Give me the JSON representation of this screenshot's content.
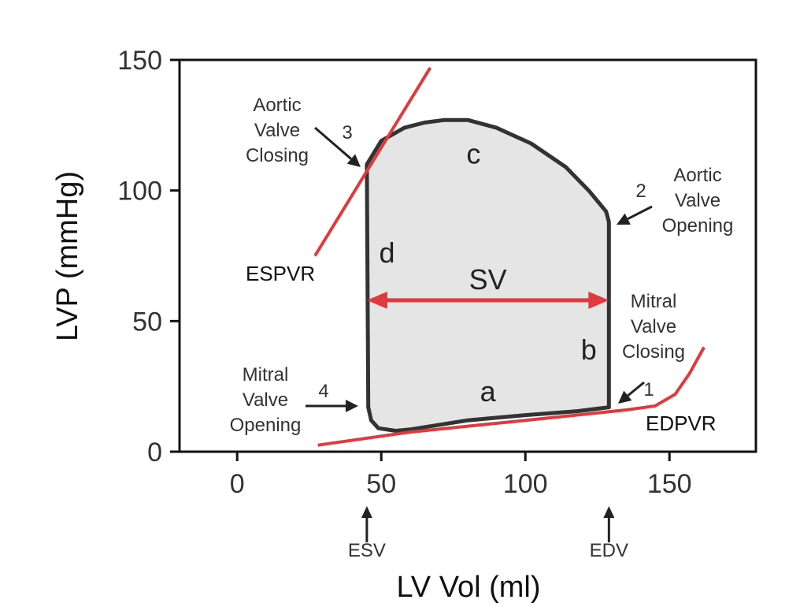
{
  "chart_data": {
    "type": "line",
    "title": "",
    "xlabel": "LV Vol (ml)",
    "ylabel": "LVP (mmHg)",
    "xlim": [
      -20,
      180
    ],
    "ylim": [
      0,
      150
    ],
    "xticks": [
      0,
      50,
      100,
      150
    ],
    "yticks": [
      0,
      50,
      100,
      150
    ],
    "grid": false,
    "colors": {
      "loop_stroke": "#333333",
      "loop_fill": "#e5e5e5",
      "line": "#e03a3e",
      "frame": "#111111"
    },
    "pv_loop": {
      "name": "",
      "points": [
        [
          45.5,
          17
        ],
        [
          45,
          110
        ],
        [
          50,
          119
        ],
        [
          58,
          124
        ],
        [
          65,
          126
        ],
        [
          72,
          127
        ],
        [
          80,
          127
        ],
        [
          90,
          124
        ],
        [
          102,
          118
        ],
        [
          114,
          109
        ],
        [
          122,
          100
        ],
        [
          128,
          92
        ],
        [
          129,
          88
        ],
        [
          129,
          17
        ],
        [
          118,
          15.5
        ],
        [
          100,
          14
        ],
        [
          80,
          12
        ],
        [
          60,
          8.5
        ],
        [
          55,
          8
        ],
        [
          49,
          9
        ],
        [
          46.5,
          12
        ]
      ]
    },
    "espvr": {
      "name": "ESPVR",
      "points": [
        [
          27,
          75
        ],
        [
          67,
          147
        ]
      ]
    },
    "edpvr": {
      "name": "EDPVR",
      "points": [
        [
          28,
          2.5
        ],
        [
          60,
          7.5
        ],
        [
          100,
          12
        ],
        [
          135,
          16
        ],
        [
          145,
          17.5
        ],
        [
          152,
          22
        ],
        [
          157,
          30
        ],
        [
          162,
          40
        ]
      ]
    },
    "sv_arrow": {
      "label": "SV",
      "x_start": 45,
      "x_end": 129,
      "y": 58
    },
    "points": [
      {
        "id": "1",
        "x": 129,
        "y": 17,
        "label": [
          "Mitral",
          "Valve",
          "Closing"
        ]
      },
      {
        "id": "2",
        "x": 129,
        "y": 88,
        "label": [
          "Aortic",
          "Valve",
          "Opening"
        ]
      },
      {
        "id": "3",
        "x": 45,
        "y": 110,
        "label": [
          "Aortic",
          "Valve",
          "Closing"
        ]
      },
      {
        "id": "4",
        "x": 45.5,
        "y": 17,
        "label": [
          "Mitral",
          "Valve",
          "Opening"
        ]
      }
    ],
    "phases": [
      {
        "label": "a",
        "x": 87,
        "y": 23
      },
      {
        "label": "b",
        "x": 122,
        "y": 39
      },
      {
        "label": "c",
        "x": 82,
        "y": 114
      },
      {
        "label": "d",
        "x": 52,
        "y": 76
      }
    ],
    "x_markers": [
      {
        "label": "ESV",
        "x": 45
      },
      {
        "label": "EDV",
        "x": 129
      }
    ]
  }
}
